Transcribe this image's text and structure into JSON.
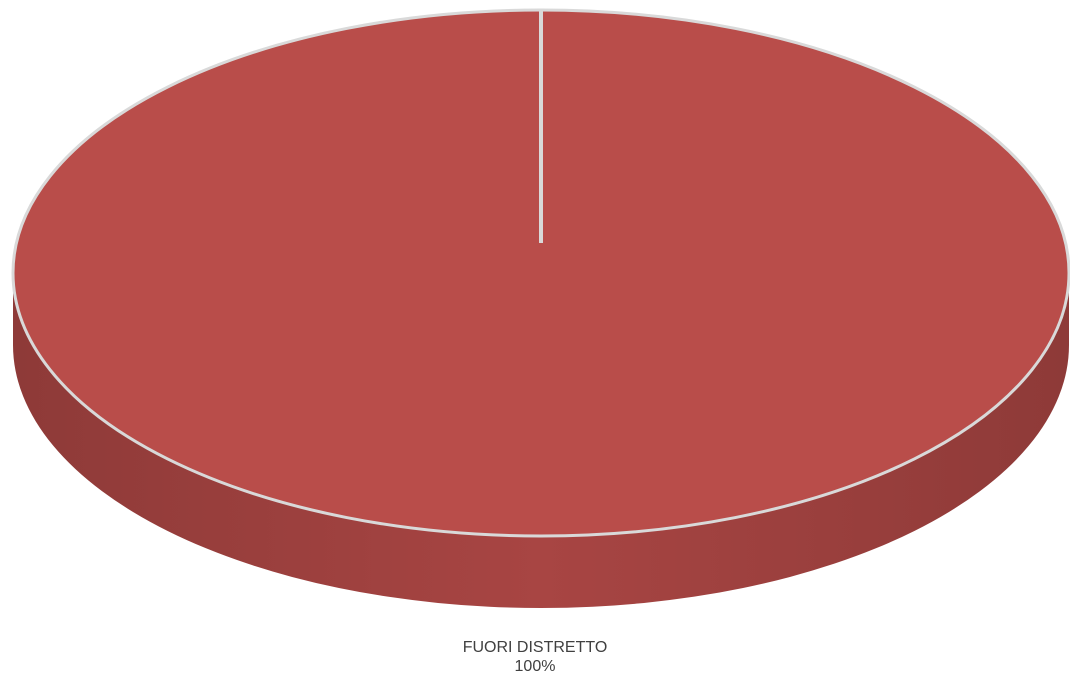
{
  "chart_data": {
    "type": "pie",
    "style": "3d",
    "title": "",
    "slices": [
      {
        "label": "FUORI DISTRETTO",
        "value": 100,
        "value_label": "100%",
        "color": "#B94D4A"
      }
    ],
    "colors": {
      "top": "#B94D4A",
      "side_dark": "#8E3A38",
      "side_mid": "#A84543",
      "edge": "#D9D9D9"
    },
    "legend": "none"
  }
}
